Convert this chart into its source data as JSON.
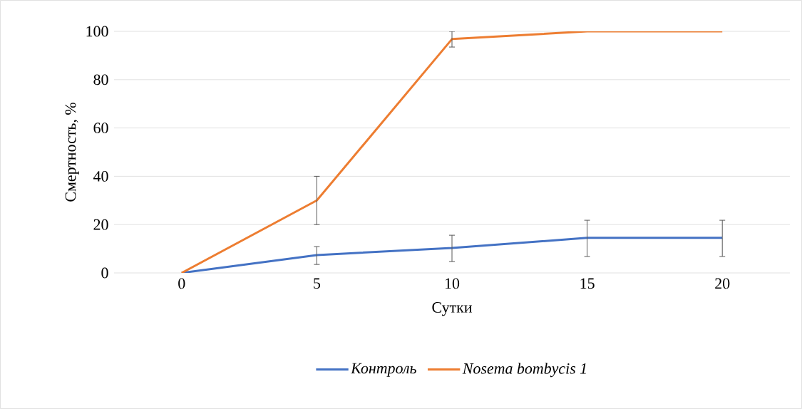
{
  "chart_data": {
    "type": "line",
    "xlabel": "Сутки",
    "ylabel": "Смертность, %",
    "categories": [
      "0",
      "5",
      "10",
      "15",
      "20"
    ],
    "series": [
      {
        "name": "Контроль",
        "color": "#4472c4",
        "values": [
          0,
          7.4,
          10.3,
          14.5,
          14.5
        ],
        "errors": [
          null,
          [
            3.5,
            10.9
          ],
          [
            4.7,
            15.6
          ],
          [
            6.8,
            21.8
          ],
          [
            6.8,
            21.8
          ]
        ]
      },
      {
        "name": "Nosema bombycis 1",
        "color": "#ed7d31",
        "values": [
          0,
          30,
          96.8,
          100,
          100
        ],
        "errors": [
          null,
          [
            20,
            40
          ],
          [
            93.5,
            100
          ],
          null,
          null
        ]
      }
    ],
    "ylim": [
      0,
      100
    ],
    "yticks": [
      0,
      20,
      40,
      60,
      80,
      100
    ],
    "grid": "y",
    "legend": "bottom",
    "marker": "none",
    "line_style": "solid"
  }
}
